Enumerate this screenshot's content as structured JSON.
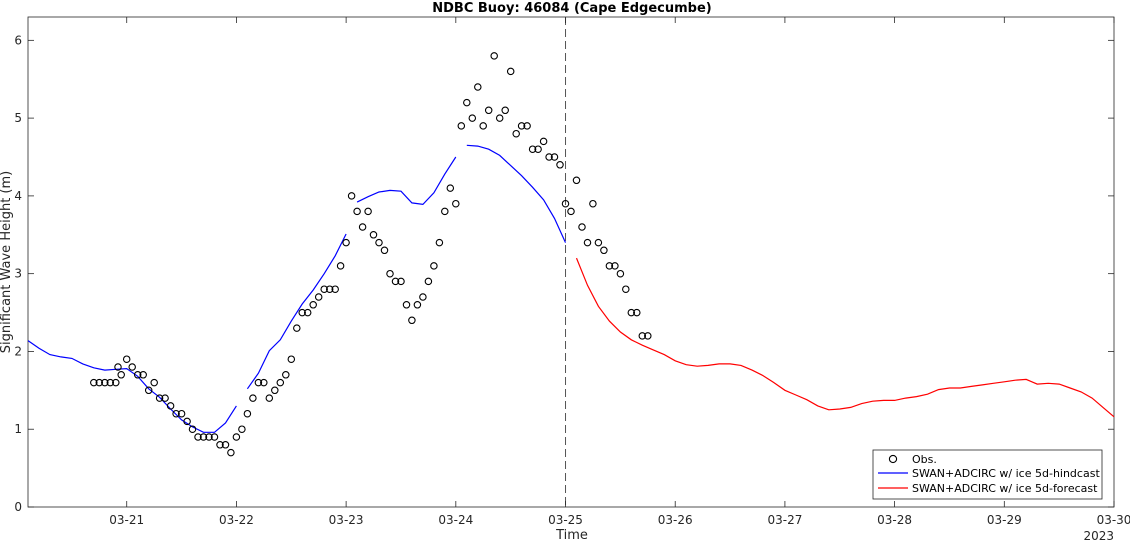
{
  "chart_data": {
    "type": "line",
    "title": "NDBC Buoy: 46084 (Cape Edgecumbe)",
    "xlabel": "Time",
    "ylabel": "Significant Wave Height (m)",
    "year_label": "2023",
    "xlim": [
      20.1,
      30.0
    ],
    "ylim": [
      0,
      6.3
    ],
    "x_ticks": [
      21,
      22,
      23,
      24,
      25,
      26,
      27,
      28,
      29,
      30
    ],
    "x_tick_labels": [
      "03-21",
      "03-22",
      "03-23",
      "03-24",
      "03-25",
      "03-26",
      "03-27",
      "03-28",
      "03-29",
      "03-30"
    ],
    "y_ticks": [
      0,
      1,
      2,
      3,
      4,
      5,
      6
    ],
    "y_tick_labels": [
      "0",
      "1",
      "2",
      "3",
      "4",
      "5",
      "6"
    ],
    "grid": false,
    "legend_position": "bottom-right",
    "vline_x": 25.0,
    "series": [
      {
        "name": "Obs.",
        "kind": "scatter",
        "color": "#000000",
        "x": [
          20.7,
          20.75,
          20.8,
          20.85,
          20.9,
          20.92,
          20.95,
          21.0,
          21.05,
          21.1,
          21.15,
          21.2,
          21.25,
          21.3,
          21.35,
          21.4,
          21.45,
          21.5,
          21.55,
          21.6,
          21.65,
          21.7,
          21.75,
          21.8,
          21.85,
          21.9,
          21.95,
          22.0,
          22.05,
          22.1,
          22.15,
          22.2,
          22.25,
          22.3,
          22.35,
          22.4,
          22.45,
          22.5,
          22.55,
          22.6,
          22.65,
          22.7,
          22.75,
          22.8,
          22.85,
          22.9,
          22.95,
          23.0,
          23.05,
          23.1,
          23.15,
          23.2,
          23.25,
          23.3,
          23.35,
          23.4,
          23.45,
          23.5,
          23.55,
          23.6,
          23.65,
          23.7,
          23.75,
          23.8,
          23.85,
          23.9,
          23.95,
          24.0,
          24.05,
          24.1,
          24.15,
          24.2,
          24.25,
          24.3,
          24.35,
          24.4,
          24.45,
          24.5,
          24.55,
          24.6,
          24.65,
          24.7,
          24.75,
          24.8,
          24.85,
          24.9,
          24.95,
          25.0,
          25.05,
          25.1,
          25.15,
          25.2,
          25.25,
          25.3,
          25.35,
          25.4,
          25.45,
          25.5,
          25.55,
          25.6,
          25.65,
          25.7,
          25.75
        ],
        "y": [
          1.6,
          1.6,
          1.6,
          1.6,
          1.6,
          1.8,
          1.7,
          1.9,
          1.8,
          1.7,
          1.7,
          1.5,
          1.6,
          1.4,
          1.4,
          1.3,
          1.2,
          1.2,
          1.1,
          1.0,
          0.9,
          0.9,
          0.9,
          0.9,
          0.8,
          0.8,
          0.7,
          0.9,
          1.0,
          1.2,
          1.4,
          1.6,
          1.6,
          1.4,
          1.5,
          1.6,
          1.7,
          1.9,
          2.3,
          2.5,
          2.5,
          2.6,
          2.7,
          2.8,
          2.8,
          2.8,
          3.1,
          3.4,
          4.0,
          3.8,
          3.6,
          3.8,
          3.5,
          3.4,
          3.3,
          3.0,
          2.9,
          2.9,
          2.6,
          2.4,
          2.6,
          2.7,
          2.9,
          3.1,
          3.4,
          3.8,
          4.1,
          3.9,
          4.9,
          5.2,
          5.0,
          5.4,
          4.9,
          5.1,
          5.8,
          5.0,
          5.1,
          5.6,
          4.8,
          4.9,
          4.9,
          4.6,
          4.6,
          4.7,
          4.5,
          4.5,
          4.4,
          3.9,
          3.8,
          4.2,
          3.6,
          3.4,
          3.9,
          3.4,
          3.3,
          3.1,
          3.1,
          3.0,
          2.8,
          2.5,
          2.5,
          2.2,
          2.2
        ]
      },
      {
        "name": "SWAN+ADCIRC w/ ice 5d-hindcast",
        "kind": "line",
        "color": "#0000ff",
        "segments": [
          {
            "x": [
              20.1,
              20.2,
              20.3,
              20.4,
              20.5,
              20.6,
              20.7,
              20.8,
              20.9,
              21.0,
              21.1,
              21.2,
              21.3,
              21.4,
              21.5,
              21.6,
              21.7,
              21.8,
              21.9,
              22.0
            ],
            "y": [
              2.14,
              2.04,
              1.96,
              1.93,
              1.91,
              1.84,
              1.79,
              1.76,
              1.77,
              1.78,
              1.68,
              1.52,
              1.41,
              1.26,
              1.12,
              1.03,
              0.96,
              0.96,
              1.08,
              1.3
            ]
          },
          {
            "x": [
              22.1,
              22.2,
              22.3,
              22.4,
              22.5,
              22.6,
              22.7,
              22.8,
              22.9,
              23.0
            ],
            "y": [
              1.52,
              1.72,
              2.01,
              2.15,
              2.39,
              2.61,
              2.79,
              3.0,
              3.23,
              3.51
            ]
          },
          {
            "x": [
              23.1,
              23.2,
              23.3,
              23.4,
              23.5,
              23.6,
              23.7,
              23.8,
              23.9,
              24.0
            ],
            "y": [
              3.92,
              3.99,
              4.05,
              4.07,
              4.06,
              3.91,
              3.89,
              4.04,
              4.28,
              4.5
            ]
          },
          {
            "x": [
              24.1,
              24.2,
              24.3,
              24.4,
              24.5,
              24.6,
              24.7,
              24.8,
              24.9,
              25.0
            ],
            "y": [
              4.65,
              4.64,
              4.6,
              4.52,
              4.39,
              4.26,
              4.11,
              3.95,
              3.71,
              3.4
            ]
          }
        ]
      },
      {
        "name": "SWAN+ADCIRC w/ ice 5d-forecast",
        "kind": "line",
        "color": "#ff0000",
        "segments": [
          {
            "x": [
              25.1,
              25.2,
              25.3,
              25.4,
              25.5,
              25.6,
              25.7,
              25.8,
              25.9,
              26.0,
              26.1,
              26.2,
              26.3,
              26.4,
              26.5,
              26.6,
              26.7,
              26.8,
              26.9,
              27.0,
              27.1,
              27.2,
              27.3,
              27.4,
              27.5,
              27.6,
              27.7,
              27.8,
              27.9,
              28.0,
              28.1,
              28.2,
              28.3,
              28.4,
              28.5,
              28.6,
              28.7,
              28.8,
              28.9,
              29.0,
              29.1,
              29.2,
              29.3,
              29.4,
              29.5,
              29.6,
              29.7,
              29.8,
              29.9,
              30.0
            ],
            "y": [
              3.2,
              2.85,
              2.58,
              2.39,
              2.25,
              2.15,
              2.08,
              2.02,
              1.96,
              1.88,
              1.83,
              1.81,
              1.82,
              1.84,
              1.84,
              1.82,
              1.76,
              1.69,
              1.6,
              1.5,
              1.44,
              1.38,
              1.3,
              1.25,
              1.26,
              1.28,
              1.33,
              1.36,
              1.37,
              1.37,
              1.4,
              1.42,
              1.45,
              1.51,
              1.53,
              1.53,
              1.55,
              1.57,
              1.59,
              1.61,
              1.63,
              1.64,
              1.58,
              1.59,
              1.58,
              1.53,
              1.48,
              1.4,
              1.28,
              1.16
            ]
          }
        ]
      }
    ]
  }
}
